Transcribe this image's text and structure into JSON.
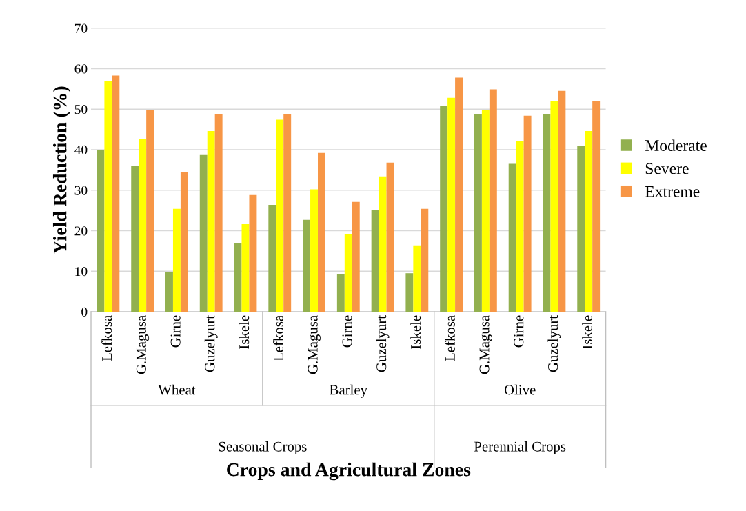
{
  "chart_data": {
    "type": "bar",
    "xlabel": "Crops and Agricultural Zones",
    "ylabel": "Yield Reduction (%)",
    "categories": [
      "Lefkosa",
      "G.Magusa",
      "Girne",
      "Guzelyurt",
      "Iskele",
      "Lefkosa",
      "G.Magusa",
      "Girne",
      "Guzelyurt",
      "Iskele",
      "Lefkosa",
      "G.Magusa",
      "Girne",
      "Guzelyurt",
      "Iskele"
    ],
    "series": [
      {
        "name": "Moderate",
        "color": "#92b04f",
        "values": [
          40,
          36.1,
          9.7,
          38.7,
          17,
          26.4,
          22.7,
          9.2,
          25.2,
          9.5,
          50.8,
          48.7,
          36.5,
          48.7,
          40.9
        ]
      },
      {
        "name": "Severe",
        "color": "#ffff00",
        "values": [
          56.9,
          42.6,
          25.4,
          44.6,
          21.6,
          47.4,
          30.2,
          19.1,
          33.4,
          16.4,
          52.8,
          49.7,
          42.1,
          52.1,
          44.6
        ]
      },
      {
        "name": "Extreme",
        "color": "#f79646",
        "values": [
          58.3,
          49.7,
          34.4,
          48.7,
          28.8,
          48.7,
          39.2,
          27.1,
          36.8,
          25.4,
          57.8,
          54.9,
          48.4,
          54.5,
          52.0
        ]
      }
    ],
    "annotations": [
      "Wheat",
      "Barley",
      "Olive",
      "Seasonal Crops",
      "Perennial Crops"
    ],
    "ylim": [
      0,
      70
    ],
    "yticks": [
      0,
      10,
      20,
      30,
      40,
      50,
      60,
      70
    ],
    "grid": "y",
    "legend": "right"
  }
}
